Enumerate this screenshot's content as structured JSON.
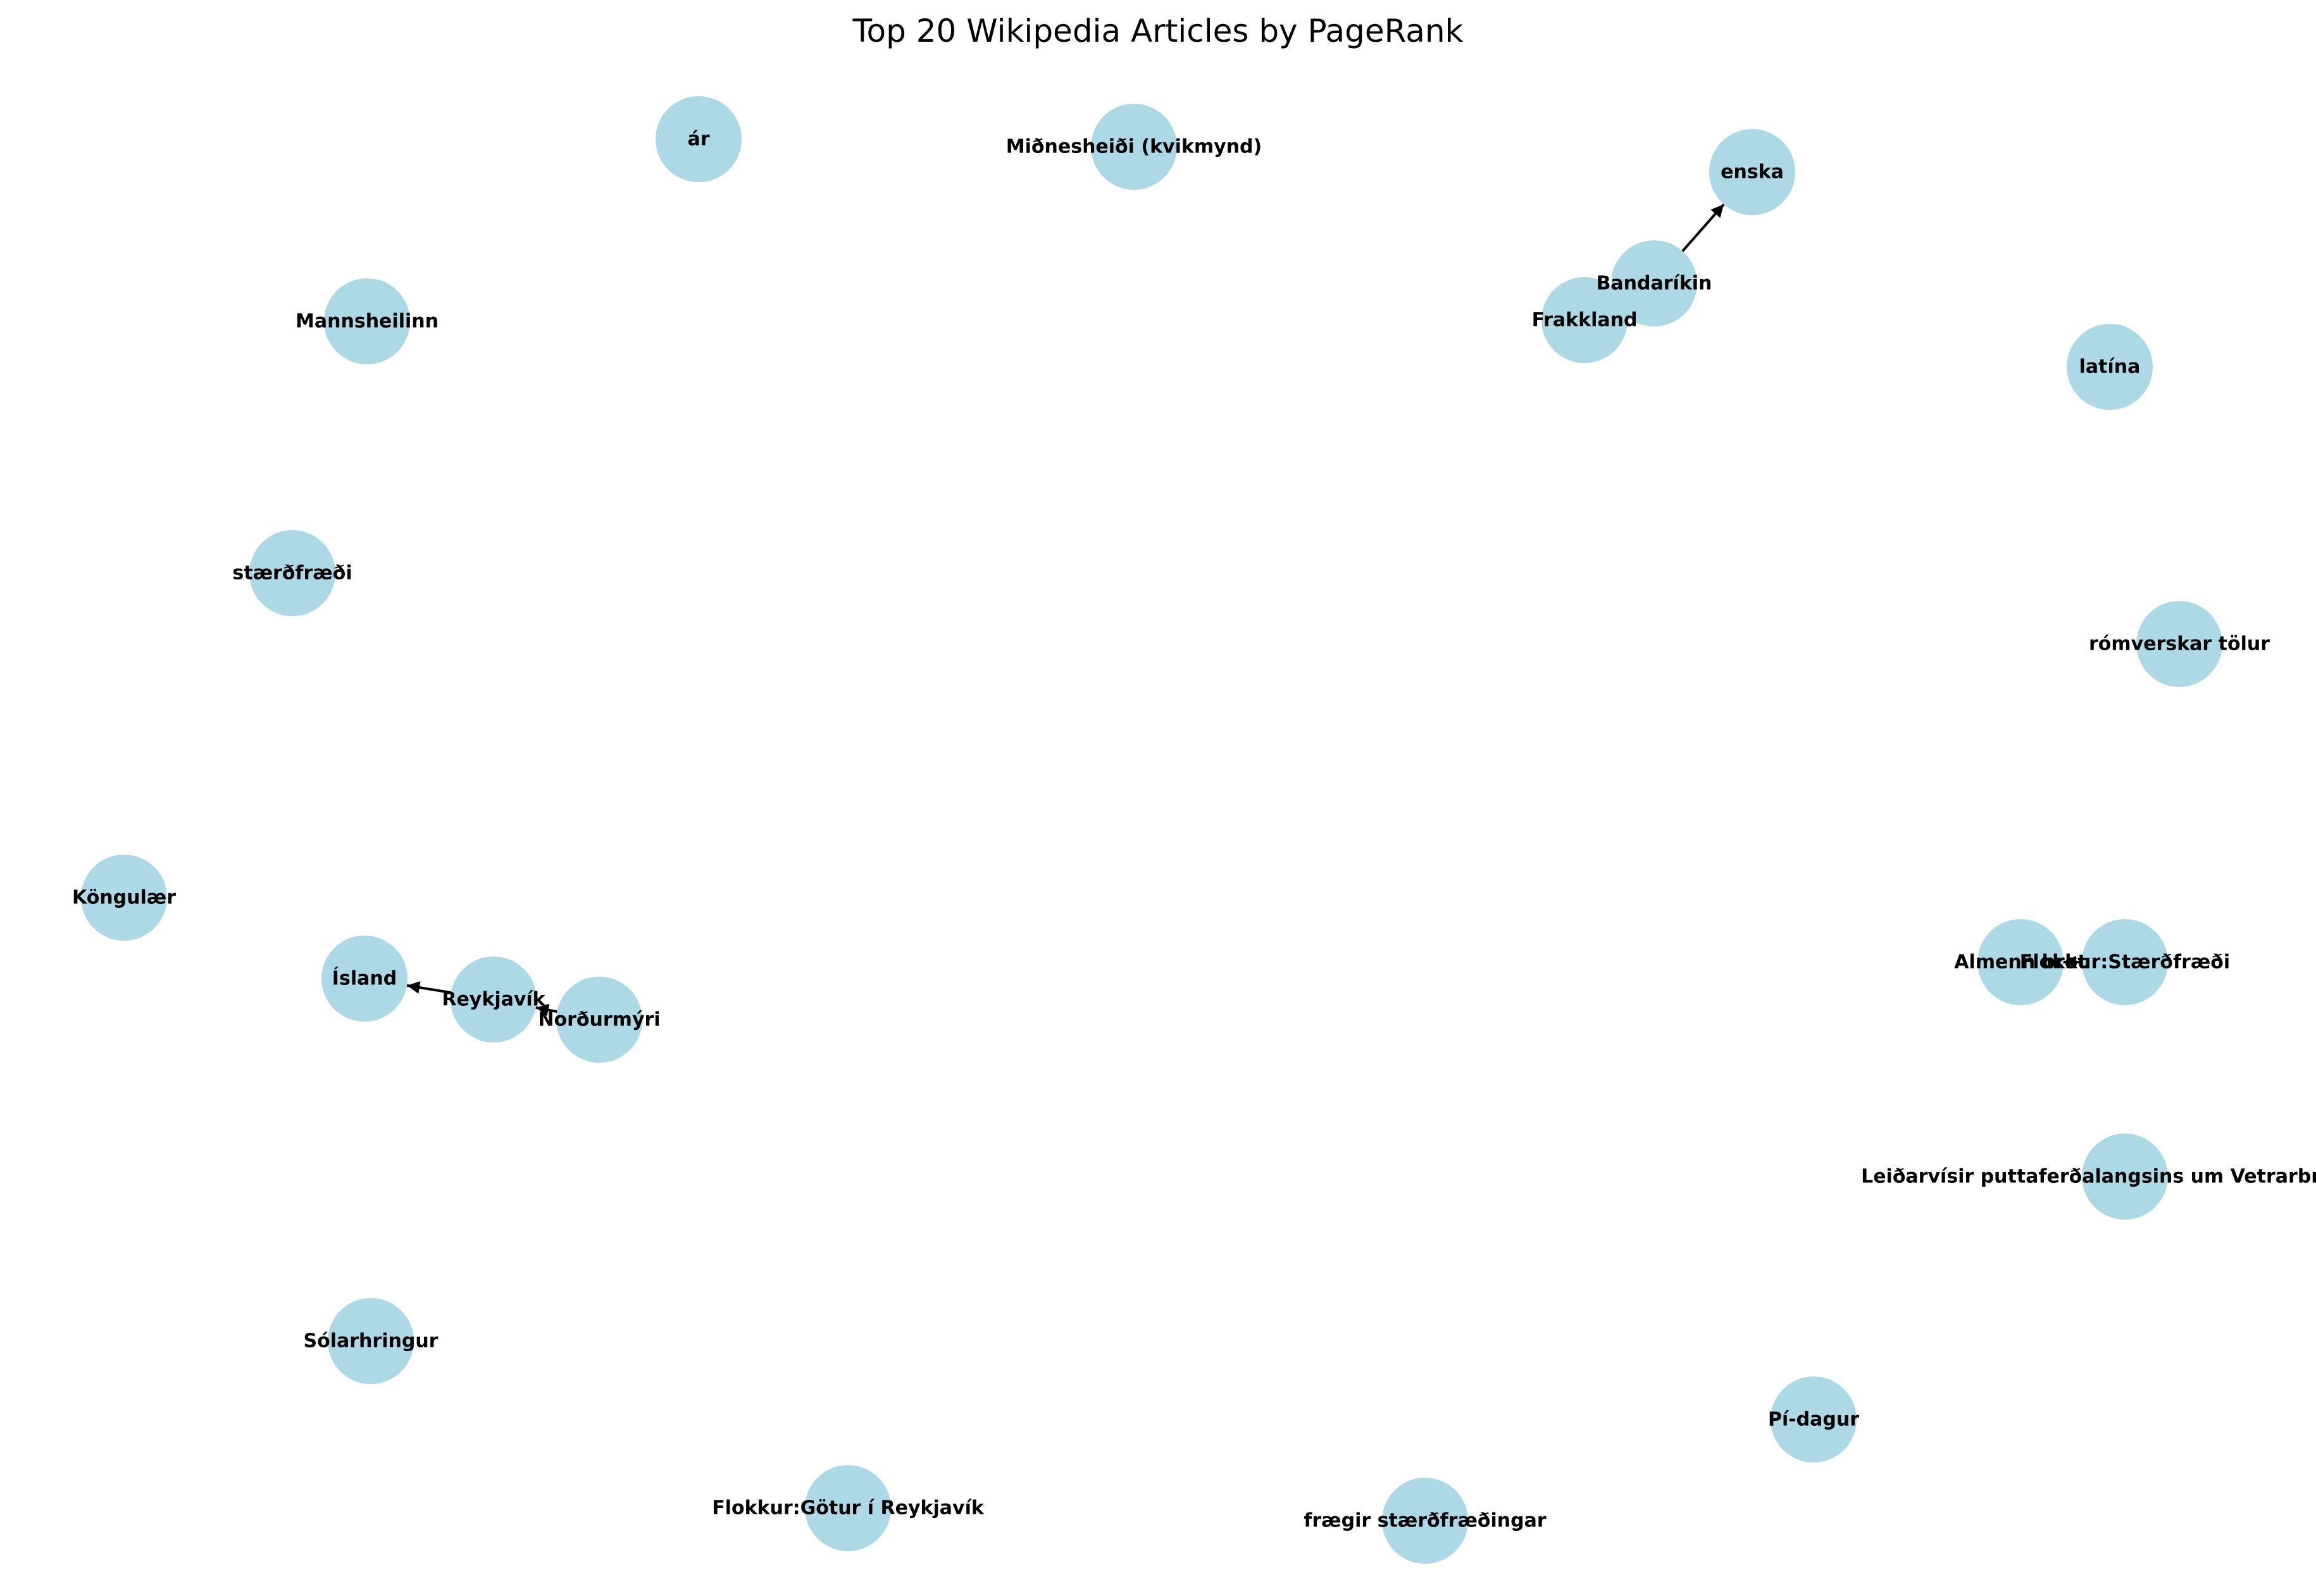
{
  "title": "Top 20 Wikipedia Articles by PageRank",
  "colors": {
    "node": "#add8e6",
    "edge": "#000000",
    "label": "#000000"
  },
  "nodes": [
    {
      "id": "ar",
      "label": "ár"
    },
    {
      "id": "midnesheidi",
      "label": "Miðnesheiði (kvikmynd)"
    },
    {
      "id": "enska",
      "label": "enska"
    },
    {
      "id": "bandarikin",
      "label": "Bandaríkin"
    },
    {
      "id": "frakkland",
      "label": "Frakkland"
    },
    {
      "id": "mannsheilinn",
      "label": "Mannsheilinn"
    },
    {
      "id": "latina",
      "label": "latína"
    },
    {
      "id": "staerdfraedi",
      "label": "stærðfræði"
    },
    {
      "id": "romverskar",
      "label": "rómverskar tölur"
    },
    {
      "id": "kongulaer",
      "label": "Köngulær"
    },
    {
      "id": "almenn-brot",
      "label": "Almenn brot"
    },
    {
      "id": "flokkur-staerdfraedi",
      "label": "Flokkur:Stærðfræði"
    },
    {
      "id": "island",
      "label": "Ísland"
    },
    {
      "id": "reykjavik",
      "label": "Reykjavík"
    },
    {
      "id": "nordurmyri",
      "label": "Norðurmýri"
    },
    {
      "id": "leidarvisir",
      "label": "Leiðarvísir puttaferðalangsins um Vetrarbrautina"
    },
    {
      "id": "solarhringur",
      "label": "Sólarhringur"
    },
    {
      "id": "pi-dagur",
      "label": "Pí-dagur"
    },
    {
      "id": "flokkur-gotur",
      "label": "Flokkur:Götur í Reykjavík"
    },
    {
      "id": "fraegir",
      "label": "frægir stærðfræðingar"
    }
  ],
  "edges": [
    {
      "from": "bandarikin",
      "to": "enska"
    },
    {
      "from": "reykjavik",
      "to": "island"
    },
    {
      "from": "nordurmyri",
      "to": "reykjavik"
    },
    {
      "from": "flokkur-staerdfraedi",
      "to": "almenn-brot"
    }
  ]
}
